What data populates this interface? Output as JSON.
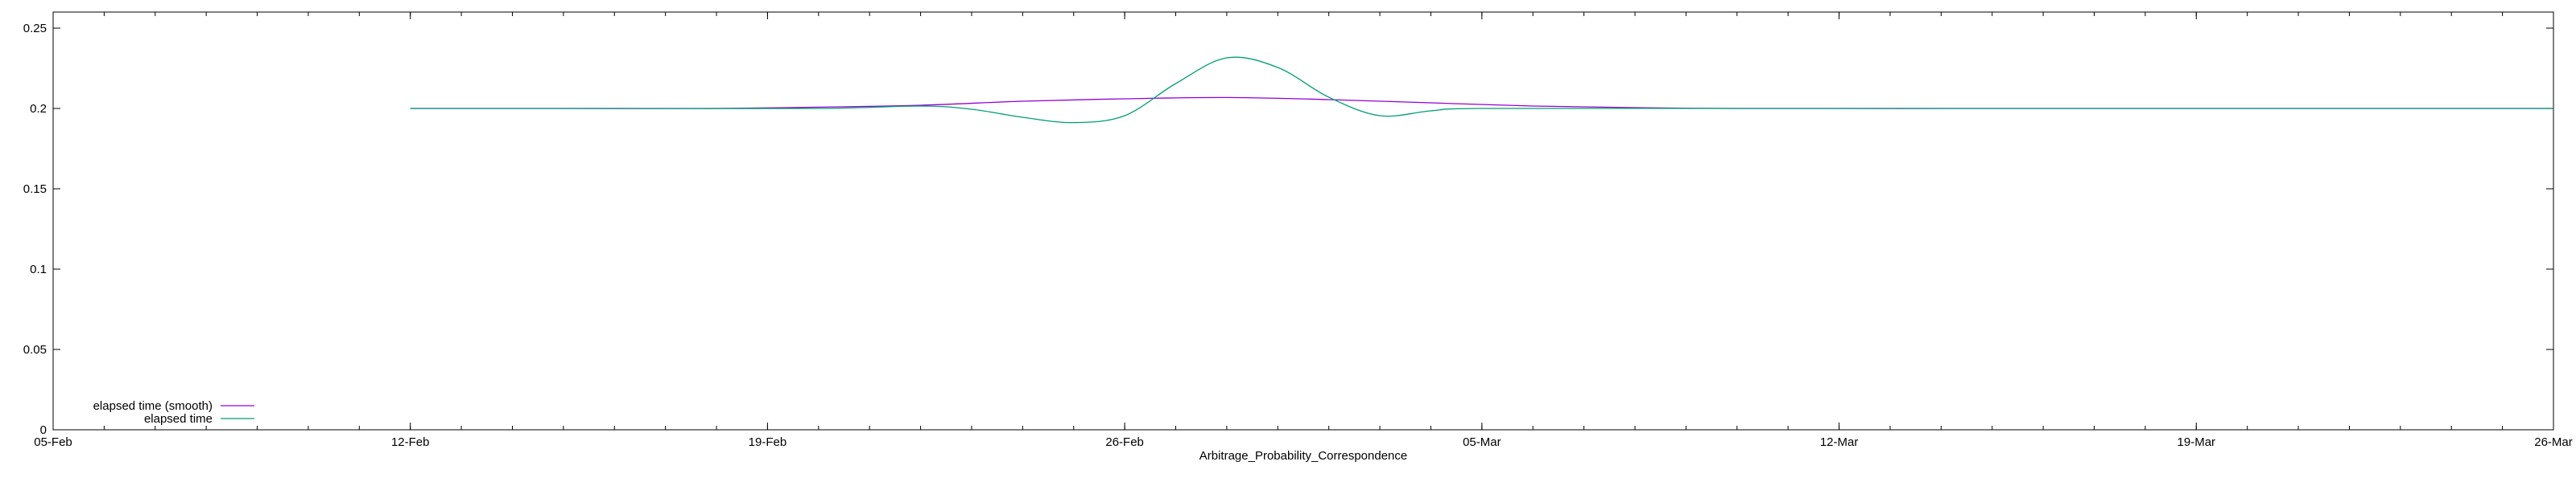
{
  "chart_data": {
    "type": "line",
    "title": "",
    "xlabel": "Arbitrage_Probability_Correspondence",
    "ylabel": "",
    "x_ticks": [
      "05-Feb",
      "12-Feb",
      "19-Feb",
      "26-Feb",
      "05-Mar",
      "12-Mar",
      "19-Mar",
      "26-Mar"
    ],
    "y_ticks": [
      "0",
      "0.05",
      "0.1",
      "0.15",
      "0.2",
      "0.25"
    ],
    "xlim": [
      "2018-02-05",
      "2018-03-26"
    ],
    "ylim": [
      0,
      0.26
    ],
    "grid": false,
    "legend_position": "bottom-left",
    "series": [
      {
        "name": "elapsed time (smooth)",
        "color": "#9400d3",
        "points": [
          [
            "2018-02-12",
            0.2
          ],
          [
            "2018-02-15",
            0.2
          ],
          [
            "2018-02-18",
            0.2
          ],
          [
            "2018-02-20",
            0.2008
          ],
          [
            "2018-02-22",
            0.202
          ],
          [
            "2018-02-24",
            0.2045
          ],
          [
            "2018-02-26",
            0.206
          ],
          [
            "2018-02-28",
            0.2068
          ],
          [
            "2018-03-02",
            0.2055
          ],
          [
            "2018-03-04",
            0.2035
          ],
          [
            "2018-03-06",
            0.2015
          ],
          [
            "2018-03-08",
            0.2005
          ],
          [
            "2018-03-10",
            0.2
          ],
          [
            "2018-03-15",
            0.2
          ],
          [
            "2018-03-20",
            0.2
          ],
          [
            "2018-03-26",
            0.2
          ]
        ]
      },
      {
        "name": "elapsed time",
        "color": "#009e73",
        "points": [
          [
            "2018-02-12",
            0.2
          ],
          [
            "2018-02-16",
            0.2
          ],
          [
            "2018-02-20",
            0.2
          ],
          [
            "2018-02-22",
            0.2015
          ],
          [
            "2018-02-23",
            0.1995
          ],
          [
            "2018-02-24",
            0.1945
          ],
          [
            "2018-02-25",
            0.1912
          ],
          [
            "2018-02-26",
            0.1955
          ],
          [
            "2018-02-27",
            0.2155
          ],
          [
            "2018-02-28",
            0.2315
          ],
          [
            "2018-03-01",
            0.2255
          ],
          [
            "2018-03-02",
            0.207
          ],
          [
            "2018-03-03",
            0.1955
          ],
          [
            "2018-03-04",
            0.1985
          ],
          [
            "2018-03-05",
            0.2
          ],
          [
            "2018-03-10",
            0.2
          ],
          [
            "2018-03-15",
            0.2
          ],
          [
            "2018-03-20",
            0.2
          ],
          [
            "2018-03-26",
            0.2
          ]
        ]
      }
    ]
  }
}
